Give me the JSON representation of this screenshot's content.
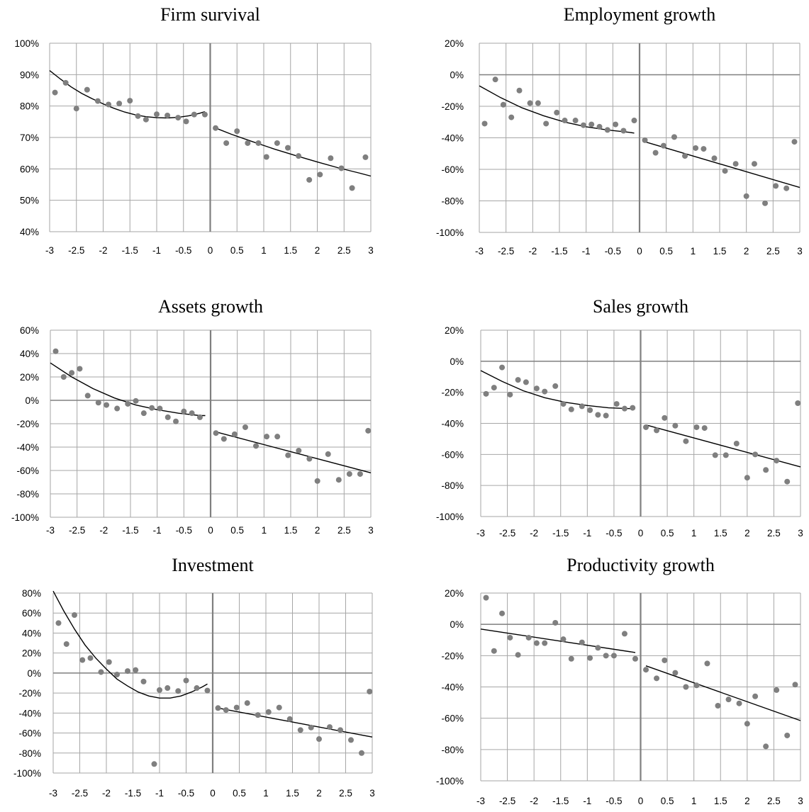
{
  "chart_data": [
    {
      "type": "scatter",
      "title": "Firm survival",
      "xlabel": "",
      "ylabel": "",
      "xlim": [
        -3,
        3
      ],
      "ylim": [
        40,
        100
      ],
      "x_ticks": [
        "-3",
        "-2.5",
        "-2",
        "-1.5",
        "-1",
        "-0.5",
        "0",
        "0.5",
        "1",
        "1.5",
        "2",
        "2.5",
        "3"
      ],
      "y_ticks": [
        "40%",
        "50%",
        "60%",
        "70%",
        "80%",
        "90%",
        "100%"
      ],
      "grid": true,
      "legend": "none",
      "cutoff": 0,
      "points": [
        [
          -2.9,
          84.3
        ],
        [
          -2.7,
          87.4
        ],
        [
          -2.5,
          79.2
        ],
        [
          -2.3,
          85.2
        ],
        [
          -2.1,
          81.6
        ],
        [
          -1.9,
          80.5
        ],
        [
          -1.7,
          80.8
        ],
        [
          -1.5,
          81.7
        ],
        [
          -1.35,
          76.8
        ],
        [
          -1.2,
          75.7
        ],
        [
          -1.0,
          77.4
        ],
        [
          -0.8,
          77.0
        ],
        [
          -0.6,
          76.3
        ],
        [
          -0.45,
          75.1
        ],
        [
          -0.3,
          77.3
        ],
        [
          -0.1,
          77.3
        ],
        [
          0.1,
          73.0
        ],
        [
          0.3,
          68.2
        ],
        [
          0.5,
          72.0
        ],
        [
          0.7,
          68.2
        ],
        [
          0.9,
          68.2
        ],
        [
          1.05,
          63.8
        ],
        [
          1.25,
          68.2
        ],
        [
          1.45,
          66.7
        ],
        [
          1.65,
          64.1
        ],
        [
          1.85,
          56.5
        ],
        [
          2.05,
          58.2
        ],
        [
          2.25,
          63.4
        ],
        [
          2.45,
          60.2
        ],
        [
          2.65,
          53.9
        ],
        [
          2.9,
          63.7
        ]
      ],
      "fit": [
        {
          "side": "left",
          "x": [
            -3.0,
            -2.8,
            -2.6,
            -2.4,
            -2.2,
            -2.0,
            -1.8,
            -1.6,
            -1.4,
            -1.2,
            -1.0,
            -0.8,
            -0.6,
            -0.4,
            -0.2,
            -0.1
          ],
          "y": [
            91.3,
            88.6,
            86.1,
            84.0,
            82.3,
            80.7,
            79.3,
            78.1,
            77.2,
            76.6,
            76.3,
            76.2,
            76.4,
            76.9,
            77.7,
            78.2
          ]
        },
        {
          "side": "right",
          "x": [
            0.1,
            0.4,
            0.8,
            1.2,
            1.6,
            2.0,
            2.4,
            2.8,
            3.0
          ],
          "y": [
            73.0,
            71.0,
            68.6,
            66.3,
            64.2,
            62.2,
            60.3,
            58.6,
            57.7
          ]
        }
      ]
    },
    {
      "type": "scatter",
      "title": "Employment growth",
      "xlabel": "",
      "ylabel": "",
      "xlim": [
        -3,
        3
      ],
      "ylim": [
        -100,
        20
      ],
      "x_ticks": [
        "-3",
        "-2.5",
        "-2",
        "-1.5",
        "-1",
        "-0.5",
        "0",
        "0.5",
        "1",
        "1.5",
        "2",
        "2.5",
        "3"
      ],
      "y_ticks": [
        "-100%",
        "-80%",
        "-60%",
        "-40%",
        "-20%",
        "0%",
        "20%"
      ],
      "grid": true,
      "legend": "none",
      "cutoff": 0,
      "points": [
        [
          -2.9,
          -31
        ],
        [
          -2.7,
          -3
        ],
        [
          -2.55,
          -19
        ],
        [
          -2.4,
          -27
        ],
        [
          -2.25,
          -10
        ],
        [
          -2.05,
          -18
        ],
        [
          -1.9,
          -18
        ],
        [
          -1.75,
          -31
        ],
        [
          -1.55,
          -24
        ],
        [
          -1.4,
          -29
        ],
        [
          -1.2,
          -29
        ],
        [
          -1.05,
          -32
        ],
        [
          -0.9,
          -31.5
        ],
        [
          -0.75,
          -33
        ],
        [
          -0.6,
          -35
        ],
        [
          -0.45,
          -31.5
        ],
        [
          -0.3,
          -35.5
        ],
        [
          -0.1,
          -29
        ],
        [
          0.1,
          -41.5
        ],
        [
          0.3,
          -49.5
        ],
        [
          0.45,
          -45
        ],
        [
          0.65,
          -39.5
        ],
        [
          0.85,
          -51.5
        ],
        [
          1.05,
          -46.5
        ],
        [
          1.2,
          -47
        ],
        [
          1.4,
          -53
        ],
        [
          1.6,
          -61
        ],
        [
          1.8,
          -56.5
        ],
        [
          2.0,
          -77
        ],
        [
          2.15,
          -56.5
        ],
        [
          2.35,
          -81.5
        ],
        [
          2.55,
          -70.5
        ],
        [
          2.75,
          -72
        ],
        [
          2.9,
          -42.5
        ]
      ],
      "fit": [
        {
          "side": "left",
          "x": [
            -3.0,
            -2.6,
            -2.2,
            -1.8,
            -1.4,
            -1.0,
            -0.6,
            -0.2,
            -0.1
          ],
          "y": [
            -7,
            -14.5,
            -21,
            -26,
            -30,
            -33,
            -35,
            -36.5,
            -37
          ]
        },
        {
          "side": "right",
          "x": [
            0.1,
            3.0
          ],
          "y": [
            -42.5,
            -71.5
          ]
        }
      ]
    },
    {
      "type": "scatter",
      "title": "Assets growth",
      "xlabel": "",
      "ylabel": "",
      "xlim": [
        -3,
        3
      ],
      "ylim": [
        -100,
        60
      ],
      "x_ticks": [
        "-3",
        "-2.5",
        "-2",
        "-1.5",
        "-1",
        "-0.5",
        "0",
        "0.5",
        "1",
        "1.5",
        "2",
        "2.5",
        "3"
      ],
      "y_ticks": [
        "-100%",
        "-80%",
        "-60%",
        "-40%",
        "-20%",
        "0%",
        "20%",
        "40%",
        "60%"
      ],
      "grid": true,
      "legend": "none",
      "cutoff": 0,
      "points": [
        [
          -2.9,
          42
        ],
        [
          -2.75,
          20
        ],
        [
          -2.6,
          23.5
        ],
        [
          -2.45,
          27
        ],
        [
          -2.3,
          4
        ],
        [
          -2.1,
          -2
        ],
        [
          -1.95,
          -4
        ],
        [
          -1.75,
          -7
        ],
        [
          -1.55,
          -3
        ],
        [
          -1.4,
          -0.5
        ],
        [
          -1.25,
          -11
        ],
        [
          -1.1,
          -6.5
        ],
        [
          -0.95,
          -7
        ],
        [
          -0.8,
          -14.5
        ],
        [
          -0.65,
          -18
        ],
        [
          -0.5,
          -9.5
        ],
        [
          -0.35,
          -11
        ],
        [
          -0.2,
          -14.5
        ],
        [
          0.1,
          -28
        ],
        [
          0.25,
          -33
        ],
        [
          0.45,
          -29
        ],
        [
          0.65,
          -23
        ],
        [
          0.85,
          -39
        ],
        [
          1.05,
          -31
        ],
        [
          1.25,
          -31
        ],
        [
          1.45,
          -47
        ],
        [
          1.65,
          -43
        ],
        [
          1.85,
          -50
        ],
        [
          2.0,
          -69
        ],
        [
          2.2,
          -46
        ],
        [
          2.4,
          -68
        ],
        [
          2.6,
          -63
        ],
        [
          2.8,
          -63
        ],
        [
          2.95,
          -26
        ]
      ],
      "fit": [
        {
          "side": "left",
          "x": [
            -3.0,
            -2.6,
            -2.2,
            -1.8,
            -1.4,
            -1.0,
            -0.6,
            -0.2,
            -0.1
          ],
          "y": [
            32,
            20,
            10,
            2,
            -4,
            -8,
            -11,
            -13,
            -13
          ]
        },
        {
          "side": "right",
          "x": [
            0.1,
            3.0
          ],
          "y": [
            -27,
            -62
          ]
        }
      ]
    },
    {
      "type": "scatter",
      "title": "Sales growth",
      "xlabel": "",
      "ylabel": "",
      "xlim": [
        -3,
        3
      ],
      "ylim": [
        -100,
        20
      ],
      "x_ticks": [
        "-3",
        "-2.5",
        "-2",
        "-1.5",
        "-1",
        "-0.5",
        "0",
        "0.5",
        "1",
        "1.5",
        "2",
        "2.5",
        "3"
      ],
      "y_ticks": [
        "-100%",
        "-80%",
        "-60%",
        "-40%",
        "-20%",
        "0%",
        "20%"
      ],
      "grid": true,
      "legend": "none",
      "cutoff": 0,
      "points": [
        [
          -2.9,
          -21
        ],
        [
          -2.75,
          -17
        ],
        [
          -2.6,
          -4
        ],
        [
          -2.45,
          -21.5
        ],
        [
          -2.3,
          -12
        ],
        [
          -2.15,
          -13.5
        ],
        [
          -1.95,
          -17.5
        ],
        [
          -1.8,
          -19.5
        ],
        [
          -1.6,
          -16
        ],
        [
          -1.45,
          -27.5
        ],
        [
          -1.3,
          -31
        ],
        [
          -1.1,
          -29
        ],
        [
          -0.95,
          -31.5
        ],
        [
          -0.8,
          -34.5
        ],
        [
          -0.65,
          -35
        ],
        [
          -0.45,
          -27.5
        ],
        [
          -0.3,
          -30.5
        ],
        [
          -0.15,
          -30
        ],
        [
          0.1,
          -42.5
        ],
        [
          0.3,
          -44.5
        ],
        [
          0.45,
          -36.5
        ],
        [
          0.65,
          -41.5
        ],
        [
          0.85,
          -51.5
        ],
        [
          1.05,
          -42.5
        ],
        [
          1.2,
          -43
        ],
        [
          1.4,
          -60.5
        ],
        [
          1.6,
          -60.5
        ],
        [
          1.8,
          -53
        ],
        [
          2.0,
          -75
        ],
        [
          2.15,
          -60
        ],
        [
          2.35,
          -70
        ],
        [
          2.55,
          -64
        ],
        [
          2.75,
          -77.5
        ],
        [
          2.95,
          -27
        ]
      ],
      "fit": [
        {
          "side": "left",
          "x": [
            -3.0,
            -2.6,
            -2.2,
            -1.8,
            -1.4,
            -1.0,
            -0.6,
            -0.2,
            -0.1
          ],
          "y": [
            -6,
            -13,
            -19,
            -23.5,
            -26.5,
            -28.5,
            -30,
            -30.5,
            -30.5
          ]
        },
        {
          "side": "right",
          "x": [
            0.1,
            3.0
          ],
          "y": [
            -41,
            -68
          ]
        }
      ]
    },
    {
      "type": "scatter",
      "title": "Investment",
      "xlabel": "",
      "ylabel": "",
      "xlim": [
        -3,
        3
      ],
      "ylim": [
        -100,
        80
      ],
      "x_ticks": [
        "-3",
        "-2.5",
        "-2",
        "-1.5",
        "-1",
        "-0.5",
        "0",
        "0.5",
        "1",
        "1.5",
        "2",
        "2.5",
        "3"
      ],
      "y_ticks": [
        "-100%",
        "-80%",
        "-60%",
        "-40%",
        "-20%",
        "0%",
        "20%",
        "40%",
        "60%",
        "80%"
      ],
      "grid": true,
      "legend": "none",
      "cutoff": 0,
      "points": [
        [
          -2.9,
          50
        ],
        [
          -2.75,
          29
        ],
        [
          -2.6,
          58
        ],
        [
          -2.45,
          13
        ],
        [
          -2.3,
          15
        ],
        [
          -2.1,
          1
        ],
        [
          -1.95,
          11
        ],
        [
          -1.8,
          -1.5
        ],
        [
          -1.6,
          2
        ],
        [
          -1.45,
          3
        ],
        [
          -1.3,
          -8.5
        ],
        [
          -1.1,
          -91
        ],
        [
          -1.0,
          -17
        ],
        [
          -0.85,
          -15
        ],
        [
          -0.65,
          -18
        ],
        [
          -0.5,
          -7.5
        ],
        [
          -0.3,
          -15
        ],
        [
          -0.1,
          -17.5
        ],
        [
          0.1,
          -35
        ],
        [
          0.25,
          -37
        ],
        [
          0.45,
          -34.5
        ],
        [
          0.65,
          -30
        ],
        [
          0.85,
          -42
        ],
        [
          1.05,
          -39
        ],
        [
          1.25,
          -34.5
        ],
        [
          1.45,
          -46
        ],
        [
          1.65,
          -57
        ],
        [
          1.85,
          -54.5
        ],
        [
          2.0,
          -66
        ],
        [
          2.2,
          -54
        ],
        [
          2.4,
          -57
        ],
        [
          2.6,
          -67
        ],
        [
          2.8,
          -80
        ],
        [
          2.95,
          -18.5
        ]
      ],
      "fit": [
        {
          "side": "left",
          "x": [
            -3.0,
            -2.8,
            -2.6,
            -2.4,
            -2.2,
            -2.0,
            -1.8,
            -1.6,
            -1.4,
            -1.2,
            -1.0,
            -0.8,
            -0.6,
            -0.4,
            -0.2,
            -0.1
          ],
          "y": [
            82,
            62,
            44,
            28,
            15,
            4,
            -6,
            -13,
            -19,
            -23,
            -25,
            -25,
            -23,
            -19,
            -14,
            -11
          ]
        },
        {
          "side": "right",
          "x": [
            0.1,
            3.0
          ],
          "y": [
            -35,
            -64
          ]
        }
      ]
    },
    {
      "type": "scatter",
      "title": "Productivity growth",
      "xlabel": "",
      "ylabel": "",
      "xlim": [
        -3,
        3
      ],
      "ylim": [
        -100,
        20
      ],
      "x_ticks": [
        "-3",
        "-2.5",
        "-2",
        "-1.5",
        "-1",
        "-0.5",
        "0",
        "0.5",
        "1",
        "1.5",
        "2",
        "2.5",
        "3"
      ],
      "y_ticks": [
        "-100%",
        "-80%",
        "-60%",
        "-40%",
        "-20%",
        "0%",
        "20%"
      ],
      "grid": true,
      "legend": "none",
      "cutoff": 0,
      "points": [
        [
          -2.9,
          17
        ],
        [
          -2.75,
          -17
        ],
        [
          -2.6,
          7
        ],
        [
          -2.45,
          -8.5
        ],
        [
          -2.3,
          -19.5
        ],
        [
          -2.1,
          -8.5
        ],
        [
          -1.95,
          -12
        ],
        [
          -1.8,
          -12
        ],
        [
          -1.6,
          1
        ],
        [
          -1.45,
          -9.5
        ],
        [
          -1.3,
          -22
        ],
        [
          -1.1,
          -11.5
        ],
        [
          -0.95,
          -21.5
        ],
        [
          -0.8,
          -15
        ],
        [
          -0.65,
          -20
        ],
        [
          -0.5,
          -20
        ],
        [
          -0.3,
          -6
        ],
        [
          -0.1,
          -22
        ],
        [
          0.1,
          -29
        ],
        [
          0.3,
          -34.5
        ],
        [
          0.45,
          -23
        ],
        [
          0.65,
          -31
        ],
        [
          0.85,
          -40
        ],
        [
          1.05,
          -39
        ],
        [
          1.25,
          -25
        ],
        [
          1.45,
          -52
        ],
        [
          1.65,
          -48
        ],
        [
          1.85,
          -50.5
        ],
        [
          2.0,
          -63.5
        ],
        [
          2.15,
          -46
        ],
        [
          2.35,
          -78
        ],
        [
          2.55,
          -42
        ],
        [
          2.75,
          -71
        ],
        [
          2.9,
          -38.5
        ]
      ],
      "fit": [
        {
          "side": "left",
          "x": [
            -3.0,
            -0.1
          ],
          "y": [
            -3,
            -18
          ]
        },
        {
          "side": "right",
          "x": [
            0.1,
            3.0
          ],
          "y": [
            -26.5,
            -61.5
          ]
        }
      ]
    }
  ]
}
